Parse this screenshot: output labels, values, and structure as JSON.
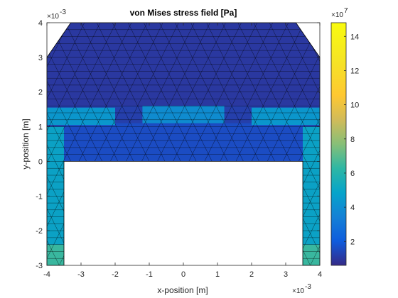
{
  "chart_data": {
    "type": "heatmap",
    "title": "von Mises stress field [Pa]",
    "xlabel": "x-position [m]",
    "ylabel": "y-position [m]",
    "x_scale_label": "×10",
    "x_scale_exponent": "-3",
    "y_scale_label": "×10",
    "y_scale_exponent": "-3",
    "xlim": [
      -4,
      4
    ],
    "ylim": [
      -3,
      4
    ],
    "xticks": [
      "-4",
      "-3",
      "-2",
      "-1",
      "0",
      "1",
      "2",
      "3",
      "4"
    ],
    "yticks": [
      "-3",
      "-2",
      "-1",
      "0",
      "1",
      "2",
      "3",
      "4"
    ],
    "colorbar": {
      "scale_label": "×10",
      "scale_exponent": "7",
      "ticks": [
        "2",
        "4",
        "6",
        "8",
        "10",
        "12",
        "14"
      ],
      "tick_values": [
        2,
        4,
        6,
        8,
        10,
        12,
        14
      ],
      "range": [
        0.6,
        14.8
      ],
      "colormap": "parula"
    },
    "geometry": {
      "outer_boundary": [
        [
          -3.5,
          0
        ],
        [
          3.5,
          0
        ],
        [
          3.5,
          -3
        ],
        [
          4,
          -3
        ],
        [
          4,
          3
        ],
        [
          3.3,
          4
        ],
        [
          -3.3,
          4
        ],
        [
          -4,
          3
        ],
        [
          -4,
          -3
        ],
        [
          -3.5,
          -3
        ]
      ],
      "hole": [
        [
          -3.5,
          0
        ],
        [
          3.5,
          0
        ],
        [
          3.5,
          -3
        ],
        [
          -3.5,
          -3
        ]
      ]
    },
    "stress_regions": [
      {
        "name": "left leg",
        "x": [
          -4,
          -3.5
        ],
        "y": [
          -3,
          1
        ],
        "value": 5.0
      },
      {
        "name": "right leg",
        "x": [
          3.5,
          4
        ],
        "y": [
          -3,
          1
        ],
        "value": 5.0
      },
      {
        "name": "left leg base",
        "x": [
          -4,
          -3.5
        ],
        "y": [
          -3,
          -2.4
        ],
        "value": 6.5
      },
      {
        "name": "right leg base",
        "x": [
          3.5,
          4
        ],
        "y": [
          -3,
          -2.4
        ],
        "value": 6.5
      },
      {
        "name": "left shoulder band",
        "x": [
          -4,
          -2
        ],
        "y": [
          1.05,
          1.55
        ],
        "value": 4.5
      },
      {
        "name": "right shoulder band",
        "x": [
          2,
          4
        ],
        "y": [
          1.05,
          1.55
        ],
        "value": 4.5
      },
      {
        "name": "central band",
        "x": [
          -1.2,
          1.2
        ],
        "y": [
          1.1,
          1.6
        ],
        "value": 4.0
      },
      {
        "name": "upper body",
        "x": [
          -4,
          4
        ],
        "y": [
          1.6,
          4
        ],
        "value": 1.0
      },
      {
        "name": "lower body",
        "x": [
          -3.5,
          3.5
        ],
        "y": [
          0,
          1.1
        ],
        "value": 1.6
      }
    ]
  },
  "colors": {
    "frame": "#262626",
    "mesh_edge": "#000000",
    "low": "#352a87",
    "high": "#f9fb0e"
  }
}
